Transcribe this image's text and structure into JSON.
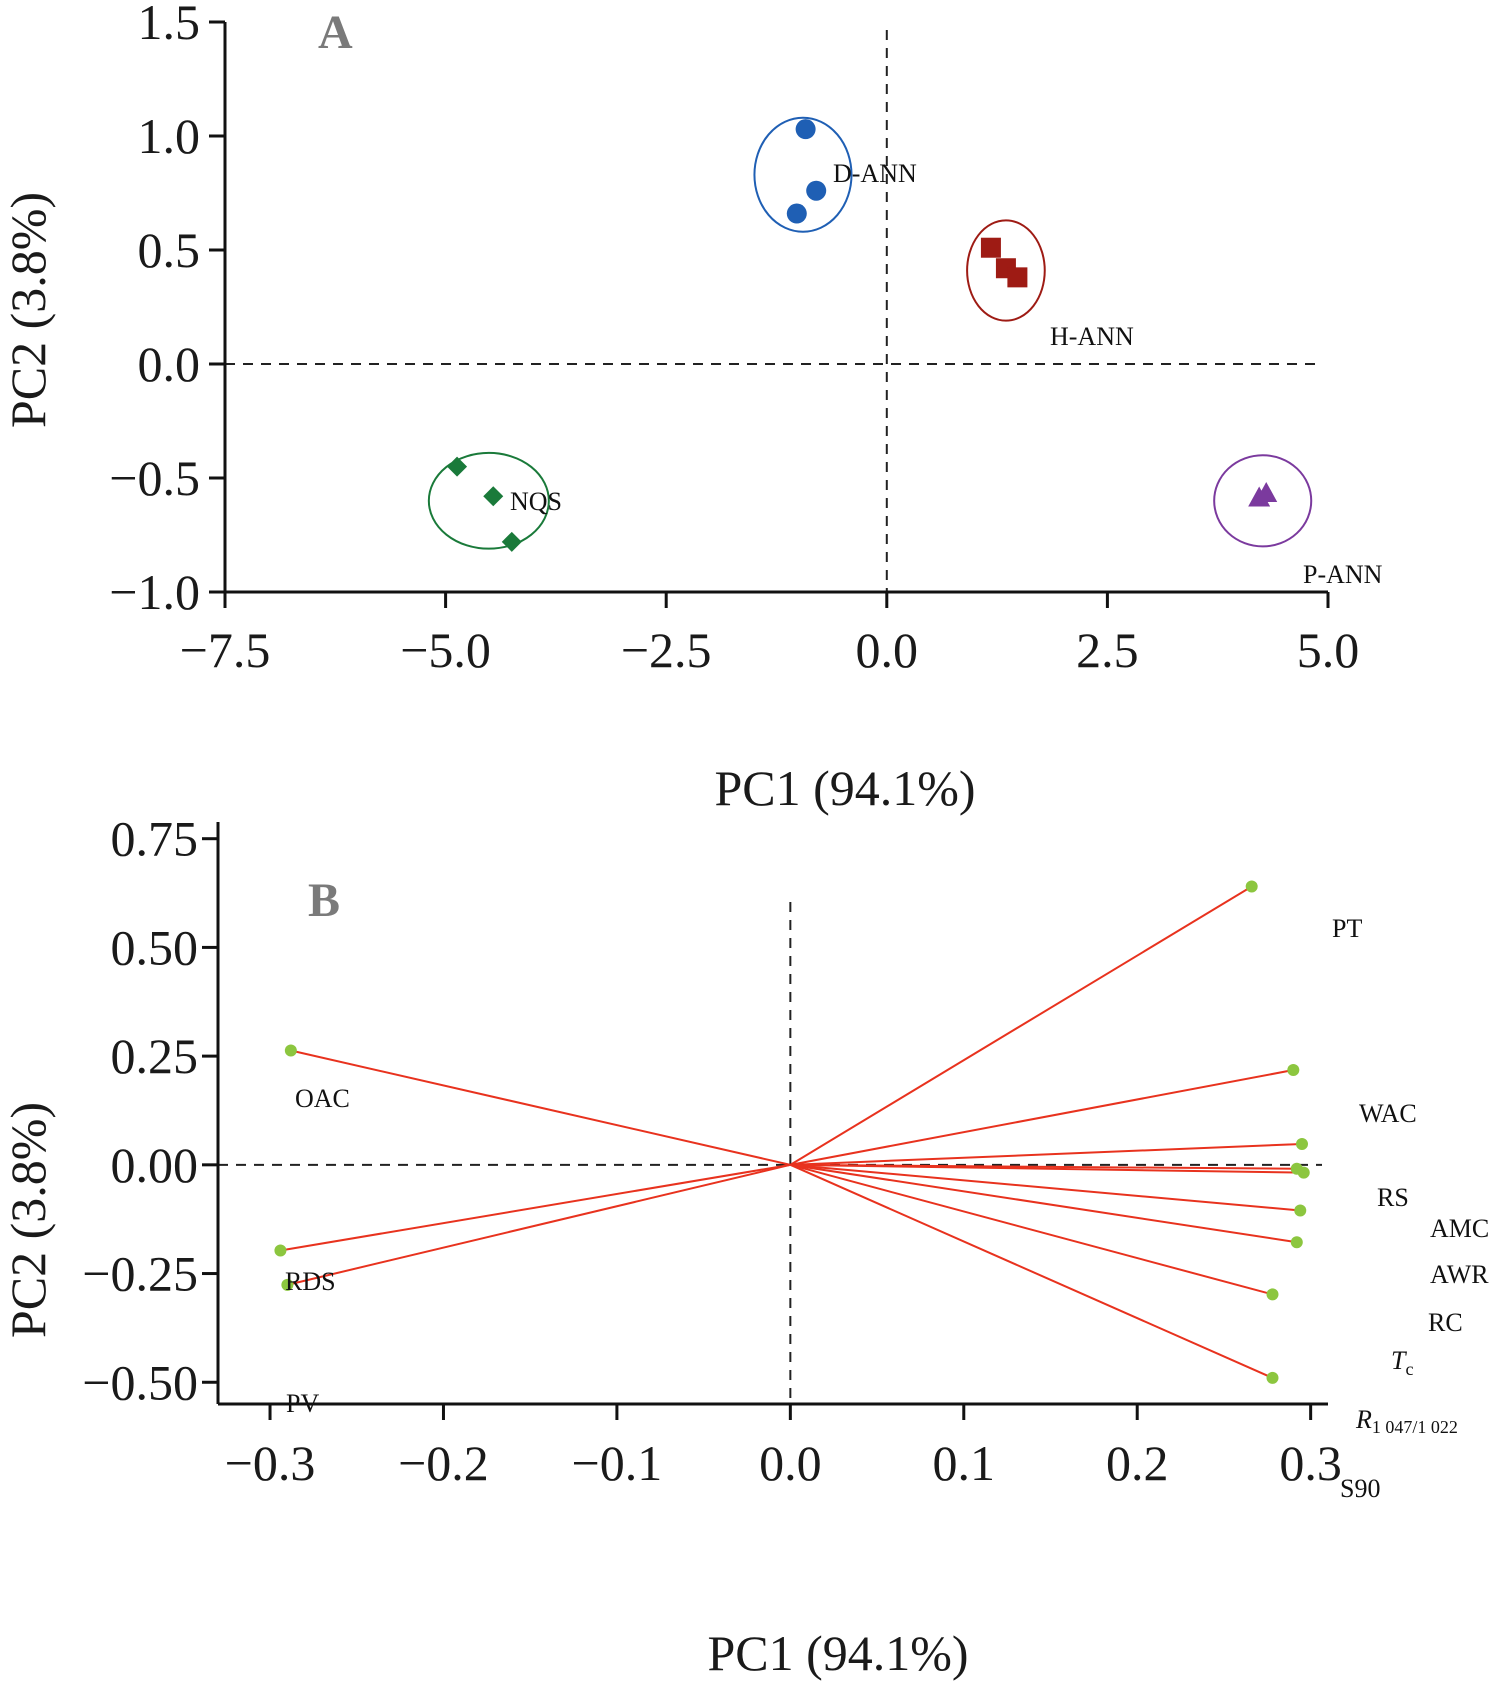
{
  "chart_data": [
    {
      "panel": "A",
      "type": "scatter",
      "xlabel": "PC1 (94.1%)",
      "ylabel": "PC2 (3.8%)",
      "xlim": [
        -7.5,
        5.0
      ],
      "ylim": [
        -1.0,
        1.5
      ],
      "xticks": [
        -7.5,
        -5.0,
        -2.5,
        0.0,
        2.5,
        5.0
      ],
      "xtick_labels": [
        "−7.5",
        "−5.0",
        "−2.5",
        "0.0",
        "2.5",
        "5.0"
      ],
      "yticks": [
        -1.0,
        -0.5,
        0.0,
        0.5,
        1.0,
        1.5
      ],
      "ytick_labels": [
        "−1.0",
        "−0.5",
        "0.0",
        "0.5",
        "1.0",
        "1.5"
      ],
      "reference_lines": {
        "x": 0,
        "y": 0,
        "style": "dashed"
      },
      "series": [
        {
          "name": "D-ANN",
          "marker": "circle",
          "color": "#1f5fb4",
          "points": [
            {
              "x": -0.92,
              "y": 1.03
            },
            {
              "x": -0.8,
              "y": 0.76
            },
            {
              "x": -1.02,
              "y": 0.66
            }
          ],
          "ellipse": {
            "cx": -0.95,
            "cy": 0.83,
            "rx": 0.55,
            "ry": 0.25
          }
        },
        {
          "name": "H-ANN",
          "marker": "square",
          "color": "#9e1b14",
          "points": [
            {
              "x": 1.18,
              "y": 0.51
            },
            {
              "x": 1.35,
              "y": 0.42
            },
            {
              "x": 1.48,
              "y": 0.38
            }
          ],
          "ellipse": {
            "cx": 1.35,
            "cy": 0.41,
            "rx": 0.44,
            "ry": 0.22
          }
        },
        {
          "name": "NQS",
          "marker": "diamond",
          "color": "#1a7a3a",
          "points": [
            {
              "x": -4.87,
              "y": -0.45
            },
            {
              "x": -4.46,
              "y": -0.58
            },
            {
              "x": -4.25,
              "y": -0.78
            }
          ],
          "ellipse": {
            "cx": -4.51,
            "cy": -0.6,
            "rx": 0.68,
            "ry": 0.21
          }
        },
        {
          "name": "P-ANN",
          "marker": "triangle",
          "color": "#7b3a9e",
          "points": [
            {
              "x": 4.22,
              "y": -0.59
            },
            {
              "x": 4.3,
              "y": -0.57
            }
          ],
          "ellipse": {
            "cx": 4.26,
            "cy": -0.6,
            "rx": 0.55,
            "ry": 0.2
          }
        }
      ]
    },
    {
      "panel": "B",
      "type": "scatter",
      "subtype": "loadings",
      "xlabel": "PC1 (94.1%)",
      "ylabel": "PC2 (3.8%)",
      "xlim": [
        -0.33,
        0.31
      ],
      "ylim": [
        -0.55,
        0.77
      ],
      "xticks": [
        -0.3,
        -0.2,
        -0.1,
        0.0,
        0.1,
        0.2,
        0.3
      ],
      "xtick_labels": [
        "−0.3",
        "−0.2",
        "−0.1",
        "0.0",
        "0.1",
        "0.2",
        "0.3"
      ],
      "yticks": [
        -0.5,
        -0.25,
        0.0,
        0.25,
        0.5,
        0.75
      ],
      "ytick_labels": [
        "−0.50",
        "−0.25",
        "0.00",
        "0.25",
        "0.50",
        "0.75"
      ],
      "reference_lines": {
        "x": 0,
        "y": 0,
        "style": "dashed"
      },
      "line_color": "#e8321e",
      "point_color": "#8cc63f",
      "loadings": [
        {
          "name": "PT",
          "x": 0.266,
          "y": 0.64
        },
        {
          "name": "WAC",
          "x": 0.29,
          "y": 0.218
        },
        {
          "name": "RS",
          "x": 0.295,
          "y": 0.048
        },
        {
          "name": "AMC",
          "x": 0.292,
          "y": -0.009
        },
        {
          "name": "AWR",
          "x": 0.296,
          "y": -0.018
        },
        {
          "name": "RC",
          "x": 0.294,
          "y": -0.105
        },
        {
          "name": "Tc",
          "x": 0.292,
          "y": -0.178
        },
        {
          "name": "R1047/1022",
          "x": 0.278,
          "y": -0.298
        },
        {
          "name": "S90",
          "x": 0.278,
          "y": -0.49
        },
        {
          "name": "OAC",
          "x": -0.288,
          "y": 0.263
        },
        {
          "name": "RDS",
          "x": -0.294,
          "y": -0.197
        },
        {
          "name": "PV",
          "x": -0.29,
          "y": -0.276
        }
      ],
      "label_text": {
        "PT": "PT",
        "WAC": "WAC",
        "RS": "RS",
        "AMC": "AMC",
        "AWR": "AWR",
        "RC": "RC",
        "Tc_main": "T",
        "Tc_sub": "c",
        "R_main": "R",
        "R_sub": "1 047/1 022",
        "S90": "S90",
        "OAC": "OAC",
        "RDS": "RDS",
        "PV": "PV"
      }
    }
  ]
}
